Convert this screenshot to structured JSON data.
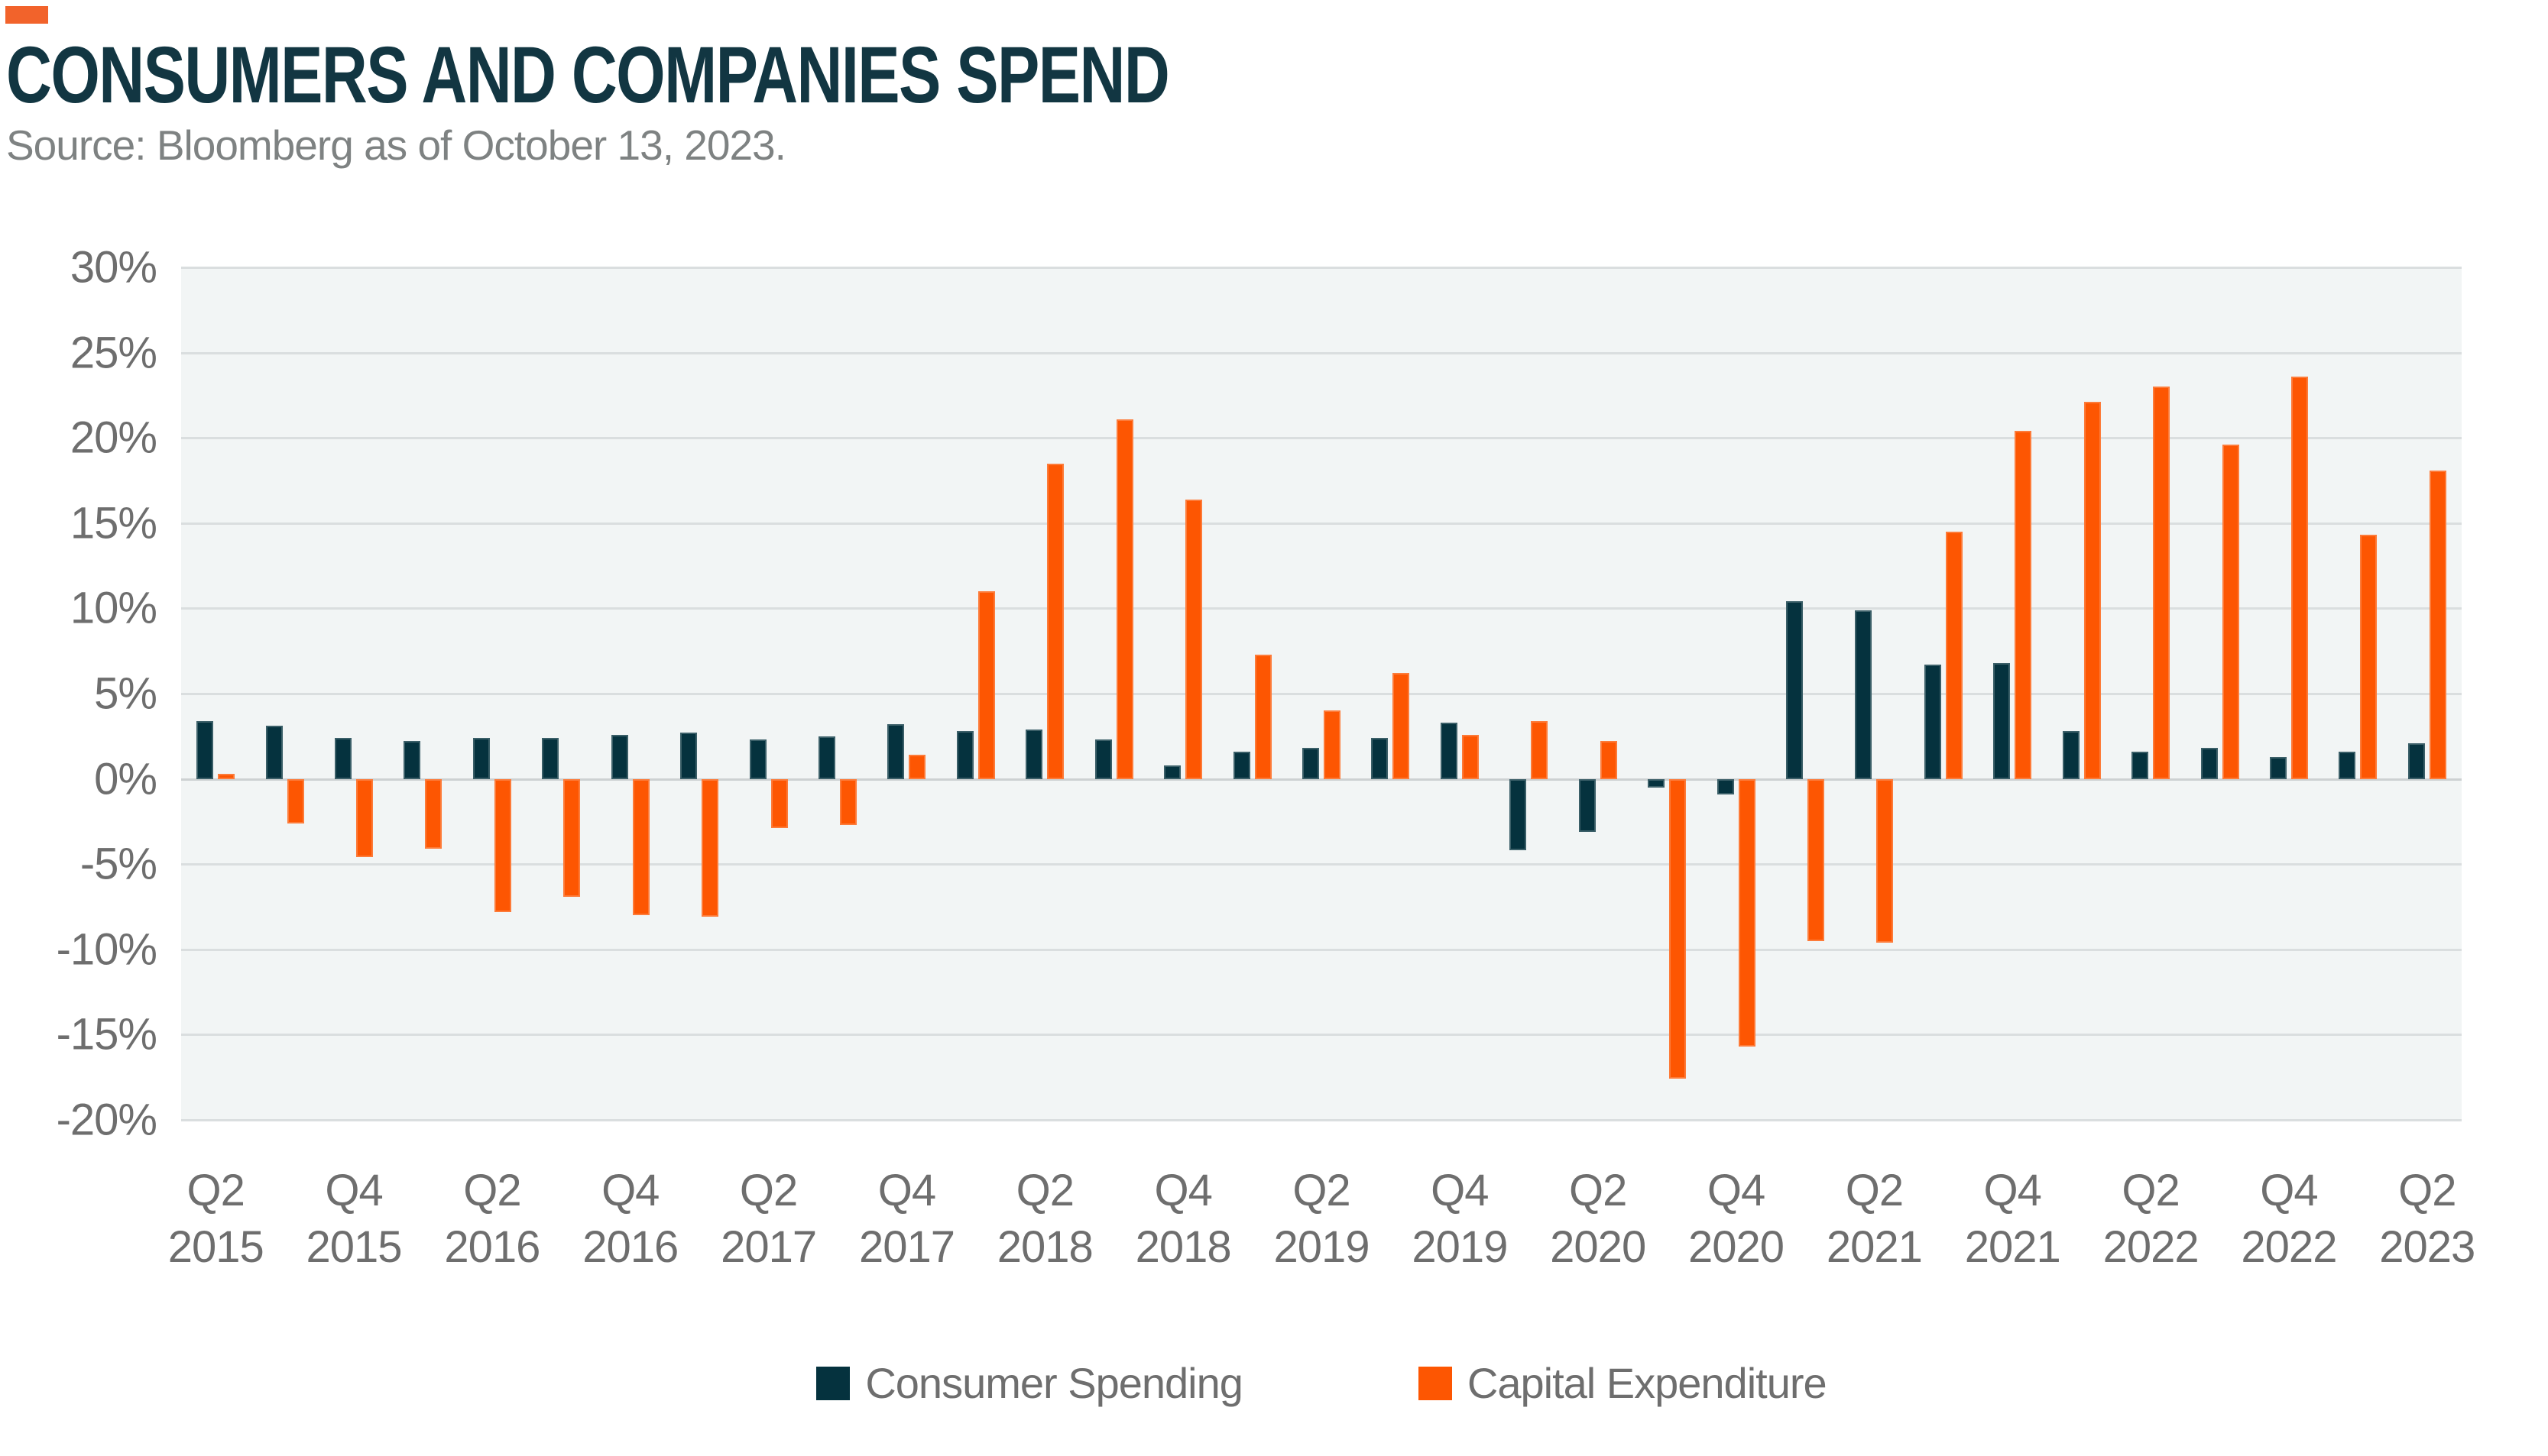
{
  "header": {
    "title": "CONSUMERS AND COMPANIES SPEND",
    "source": "Source: Bloomberg as of October 13, 2023."
  },
  "legend": {
    "items": [
      {
        "label": "Consumer Spending",
        "color": "#05323E"
      },
      {
        "label": "Capital Expenditure",
        "color": "#FD5602"
      }
    ]
  },
  "colors": {
    "accent_orange": "#F2632B",
    "consumer_spending": "#05323E",
    "capital_expenditure": "#FD5602",
    "plot_background": "#F2F5F5",
    "gridline": "#DADEDF",
    "zero_line": "#CDD1D2",
    "axis_text": "#6E6E6E",
    "title_text": "#123642",
    "source_text": "#7E8282"
  },
  "chart_data": {
    "type": "bar",
    "title": "CONSUMERS AND COMPANIES SPEND",
    "xlabel": "",
    "ylabel": "",
    "ylim": [
      -20,
      30
    ],
    "ytick_step": 5,
    "y_ticks": [
      "30%",
      "25%",
      "20%",
      "15%",
      "10%",
      "5%",
      "0%",
      "-5%",
      "-10%",
      "-15%",
      "-20%"
    ],
    "grid": "horizontal",
    "legend_position": "bottom",
    "x_label_every": 2,
    "categories": [
      "Q2 2015",
      "Q3 2015",
      "Q4 2015",
      "Q1 2016",
      "Q2 2016",
      "Q3 2016",
      "Q4 2016",
      "Q1 2017",
      "Q2 2017",
      "Q3 2017",
      "Q4 2017",
      "Q1 2018",
      "Q2 2018",
      "Q3 2018",
      "Q4 2018",
      "Q1 2019",
      "Q2 2019",
      "Q3 2019",
      "Q4 2019",
      "Q1 2020",
      "Q2 2020",
      "Q3 2020",
      "Q4 2020",
      "Q1 2021",
      "Q2 2021",
      "Q3 2021",
      "Q4 2021",
      "Q1 2022",
      "Q2 2022",
      "Q3 2022",
      "Q4 2022",
      "Q1 2023",
      "Q2 2023"
    ],
    "series": [
      {
        "name": "Consumer Spending",
        "key": "consumer-spending",
        "color": "#05323E",
        "values": [
          3.4,
          3.1,
          2.4,
          2.2,
          2.4,
          2.4,
          2.6,
          2.7,
          2.3,
          2.5,
          3.2,
          2.8,
          2.9,
          2.3,
          0.8,
          1.6,
          1.8,
          2.4,
          3.3,
          -4.2,
          -3.1,
          -0.5,
          -0.9,
          10.4,
          9.9,
          6.7,
          6.8,
          2.8,
          1.6,
          1.8,
          1.3,
          1.6,
          2.1
        ]
      },
      {
        "name": "Capital Expenditure",
        "key": "capital-expenditure",
        "color": "#FD5602",
        "values": [
          0.3,
          -2.6,
          -4.6,
          -4.1,
          -7.8,
          -6.9,
          -8.0,
          -8.1,
          -2.9,
          -2.7,
          1.4,
          11.0,
          18.5,
          21.1,
          16.4,
          7.3,
          4.0,
          6.2,
          2.6,
          3.4,
          2.2,
          -17.6,
          -15.7,
          -9.5,
          -9.6,
          14.5,
          20.4,
          22.1,
          23.0,
          19.6,
          23.6,
          14.3,
          18.1
        ]
      }
    ]
  }
}
